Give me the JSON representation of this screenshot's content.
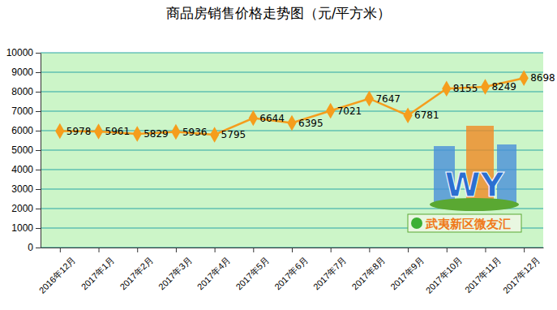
{
  "chart_data": {
    "type": "line",
    "title": "商品房销售价格走势图（元/平方米）",
    "categories": [
      "2016年12月",
      "2017年1月",
      "2017年2月",
      "2017年3月",
      "2017年4月",
      "2017年5月",
      "2017年6月",
      "2017年7月",
      "2017年8月",
      "2017年9月",
      "2017年10月",
      "2017年11月",
      "2017年12月"
    ],
    "values": [
      5978,
      5961,
      5829,
      5936,
      5795,
      6644,
      6395,
      7021,
      7647,
      6781,
      8155,
      8249,
      8698
    ],
    "color": "#f59d1c",
    "marker": "diamond",
    "ylim": [
      0,
      10000
    ],
    "yticks": [
      0,
      1000,
      2000,
      3000,
      4000,
      5000,
      6000,
      7000,
      8000,
      9000,
      10000
    ],
    "grid": true,
    "data_labels": true,
    "annotations": [
      "WY",
      "武夷新区微友汇"
    ]
  }
}
